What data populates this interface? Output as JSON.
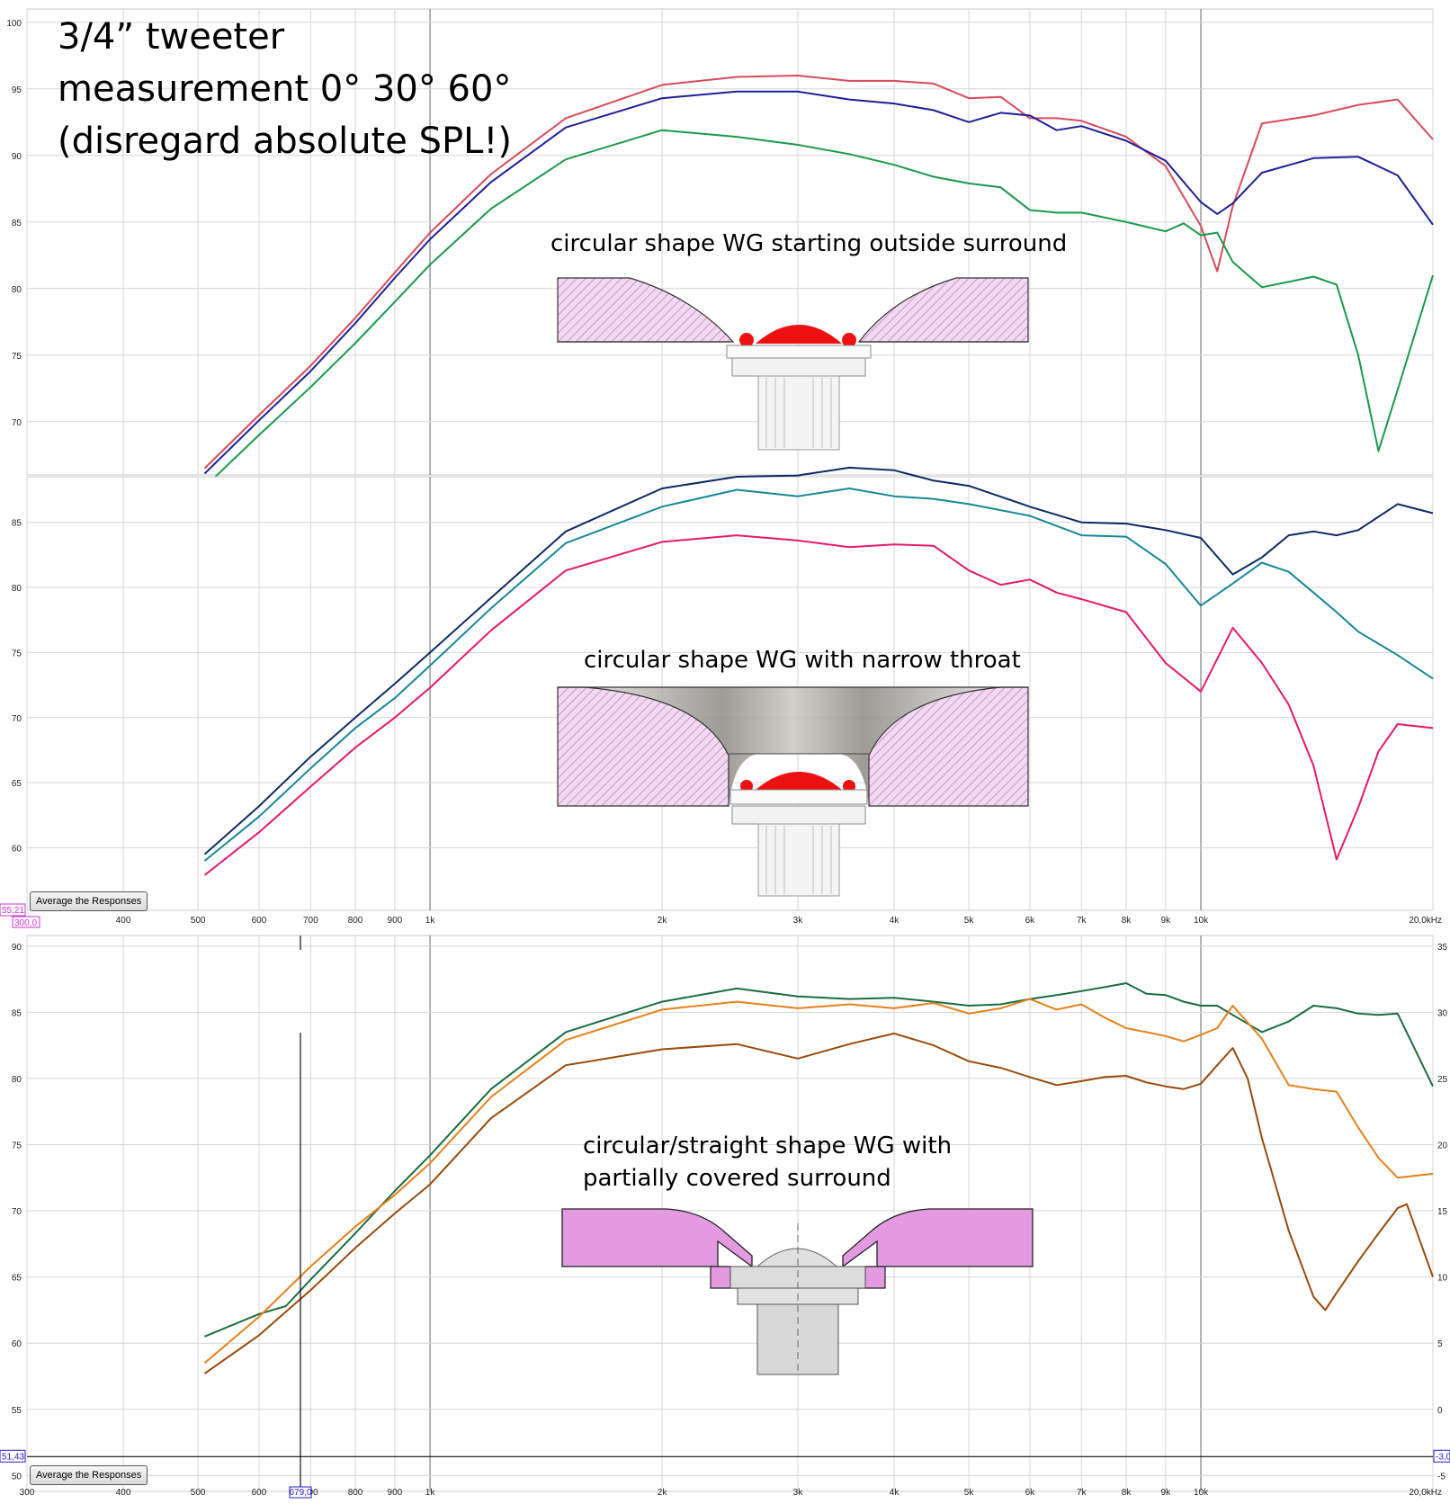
{
  "title_lines": [
    "3/4” tweeter",
    "measurement 0° 30° 60°",
    "(disregard absolute SPL!)"
  ],
  "captions": {
    "panel1": [
      "circular shape WG starting outside surround"
    ],
    "panel2": [
      "circular shape WG with narrow throat"
    ],
    "panel3": [
      "circular/straight shape WG with",
      "partially covered surround"
    ]
  },
  "buttons": {
    "average": "Average the Responses"
  },
  "readouts": {
    "panel2_left_value": "55,21",
    "panel2_left_freq": "300,0",
    "panel3_left_value": "51,43",
    "panel3_right_value": "-3,0",
    "panel3_cursor_freq": "679,0"
  },
  "freq_axis": {
    "ticks": [
      300,
      400,
      500,
      600,
      700,
      800,
      900,
      1000,
      2000,
      3000,
      4000,
      5000,
      6000,
      7000,
      8000,
      9000,
      10000,
      20000
    ],
    "tick_labels": [
      "300",
      "400",
      "500",
      "600",
      "700",
      "800",
      "900",
      "1k",
      "2k",
      "3k",
      "4k",
      "5k",
      "6k",
      "7k",
      "8k",
      "9k",
      "10k",
      "20,0kHz"
    ],
    "xlim": [
      300,
      20000
    ],
    "scale": "log"
  },
  "colors": {
    "p1_0deg": "#d94a5a",
    "p1_30deg": "#1f1f9a",
    "p1_60deg": "#1a9a4a",
    "p2_0deg": "#0e2a66",
    "p2_30deg": "#17889a",
    "p2_60deg": "#e8186b",
    "p3_0deg": "#1a6e40",
    "p3_30deg": "#e8801a",
    "p3_60deg": "#9a4a0a",
    "wg_hatch": "#c58fc5",
    "wg_fill_solid": "#e39ae0",
    "dome": "#ee1111"
  },
  "chart_data": [
    {
      "type": "line",
      "panel": "top",
      "ylim": [
        66,
        101
      ],
      "y_ticks": [
        70,
        75,
        80,
        85,
        90,
        95,
        100
      ],
      "grid": true,
      "series": [
        {
          "x": [
            510,
            600,
            700,
            800,
            900,
            1000,
            1200,
            1500,
            2000,
            2500,
            3000,
            3500,
            4000,
            4500,
            5000,
            5500,
            6000,
            6500,
            7000,
            8000,
            9000,
            10000,
            10500,
            11000,
            12000,
            14000,
            16000,
            18000,
            20000
          ],
          "values": [
            66.5,
            70.5,
            74.2,
            77.8,
            81.2,
            84.2,
            88.6,
            92.8,
            95.3,
            95.9,
            96.0,
            95.6,
            95.6,
            95.4,
            94.3,
            94.4,
            92.8,
            92.8,
            92.6,
            91.4,
            89.2,
            84.7,
            81.3,
            86.2,
            92.4,
            93.0,
            93.8,
            94.2,
            91.2
          ]
        },
        {
          "x": [
            510,
            600,
            700,
            800,
            900,
            1000,
            1200,
            1500,
            2000,
            2500,
            3000,
            3500,
            4000,
            4500,
            5000,
            5500,
            6000,
            6500,
            7000,
            8000,
            9000,
            10000,
            10500,
            11000,
            12000,
            14000,
            16000,
            18000,
            20000
          ],
          "values": [
            66.1,
            70.1,
            73.8,
            77.4,
            80.8,
            83.7,
            88.0,
            92.1,
            94.3,
            94.8,
            94.8,
            94.2,
            93.9,
            93.4,
            92.5,
            93.2,
            93.0,
            91.9,
            92.2,
            91.1,
            89.6,
            86.5,
            85.6,
            86.4,
            88.7,
            89.8,
            89.9,
            88.5,
            84.8
          ]
        },
        {
          "x": [
            510,
            600,
            700,
            800,
            900,
            1000,
            1200,
            1500,
            2000,
            2500,
            3000,
            3500,
            4000,
            4500,
            5000,
            5500,
            6000,
            6500,
            7000,
            8000,
            9000,
            9500,
            10000,
            10500,
            11000,
            12000,
            13000,
            14000,
            15000,
            16000,
            17000,
            18000,
            20000
          ],
          "values": [
            65.1,
            69.0,
            72.6,
            75.9,
            79.0,
            81.8,
            86.0,
            89.7,
            91.9,
            91.4,
            90.8,
            90.1,
            89.3,
            88.4,
            87.9,
            87.6,
            85.9,
            85.7,
            85.7,
            85.0,
            84.3,
            84.9,
            84.0,
            84.2,
            82.0,
            80.1,
            80.5,
            80.9,
            80.3,
            75.0,
            67.8,
            72.4,
            81.0
          ]
        }
      ]
    },
    {
      "type": "line",
      "panel": "middle",
      "ylim": [
        55.2,
        88.5
      ],
      "y_ticks": [
        60,
        65,
        70,
        75,
        80,
        85
      ],
      "grid": true,
      "series": [
        {
          "x": [
            510,
            600,
            700,
            800,
            900,
            1000,
            1200,
            1500,
            2000,
            2500,
            3000,
            3500,
            4000,
            4500,
            5000,
            6000,
            7000,
            8000,
            9000,
            10000,
            11000,
            12000,
            13000,
            14000,
            15000,
            16000,
            18000,
            20000
          ],
          "values": [
            59.5,
            63.2,
            67.0,
            70.0,
            72.6,
            75.0,
            79.2,
            84.3,
            87.6,
            88.5,
            88.6,
            89.2,
            89.0,
            88.2,
            87.8,
            86.2,
            85.0,
            84.9,
            84.4,
            83.8,
            81.0,
            82.3,
            84.0,
            84.3,
            84.0,
            84.4,
            86.4,
            85.7
          ]
        },
        {
          "x": [
            510,
            600,
            700,
            800,
            900,
            1000,
            1200,
            1500,
            2000,
            2500,
            3000,
            3500,
            4000,
            4500,
            5000,
            6000,
            7000,
            8000,
            9000,
            10000,
            11000,
            12000,
            13000,
            14000,
            15000,
            16000,
            18000,
            20000
          ],
          "values": [
            59.0,
            62.4,
            66.1,
            69.2,
            71.5,
            74.0,
            78.4,
            83.4,
            86.2,
            87.5,
            87.0,
            87.6,
            87.0,
            86.8,
            86.4,
            85.5,
            84.0,
            83.9,
            81.8,
            78.6,
            80.3,
            81.9,
            81.2,
            79.6,
            78.1,
            76.6,
            74.8,
            73.0
          ]
        },
        {
          "x": [
            510,
            600,
            700,
            800,
            900,
            1000,
            1200,
            1500,
            2000,
            2500,
            3000,
            3500,
            4000,
            4500,
            5000,
            5500,
            6000,
            6500,
            7000,
            8000,
            9000,
            10000,
            11000,
            12000,
            13000,
            14000,
            15000,
            16000,
            17000,
            18000,
            20000
          ],
          "values": [
            57.9,
            61.2,
            64.7,
            67.7,
            70.0,
            72.3,
            76.7,
            81.3,
            83.5,
            84.0,
            83.6,
            83.1,
            83.3,
            83.2,
            81.3,
            80.2,
            80.6,
            79.6,
            79.1,
            78.1,
            74.2,
            72.0,
            76.9,
            74.2,
            71.0,
            66.3,
            59.1,
            63.1,
            67.4,
            69.5,
            69.2
          ]
        }
      ]
    },
    {
      "type": "line",
      "panel": "bottom",
      "ylim": [
        48.8,
        90.8
      ],
      "y_ticks": [
        50,
        55,
        60,
        65,
        70,
        75,
        80,
        85,
        90
      ],
      "y2_ticks": [
        -5,
        0,
        5,
        10,
        15,
        20,
        25,
        30,
        35
      ],
      "grid": true,
      "series": [
        {
          "x": [
            510,
            600,
            650,
            700,
            800,
            900,
            1000,
            1200,
            1500,
            2000,
            2500,
            3000,
            3500,
            4000,
            4500,
            5000,
            5500,
            6000,
            6500,
            7000,
            7500,
            8000,
            8500,
            9000,
            9500,
            10000,
            10500,
            11000,
            12000,
            13000,
            14000,
            15000,
            16000,
            17000,
            18000,
            20000
          ],
          "values": [
            60.5,
            62.2,
            62.8,
            64.8,
            68.3,
            71.5,
            74.2,
            79.2,
            83.5,
            85.8,
            86.8,
            86.2,
            86.0,
            86.1,
            85.8,
            85.5,
            85.6,
            86.0,
            86.3,
            86.6,
            86.9,
            87.2,
            86.4,
            86.3,
            85.8,
            85.5,
            85.5,
            84.8,
            83.5,
            84.3,
            85.5,
            85.3,
            84.9,
            84.8,
            84.9,
            79.4
          ]
        },
        {
          "x": [
            510,
            600,
            700,
            800,
            900,
            1000,
            1200,
            1500,
            2000,
            2500,
            3000,
            3500,
            4000,
            4500,
            5000,
            5500,
            6000,
            6500,
            7000,
            7500,
            8000,
            8500,
            9000,
            9500,
            10000,
            10500,
            11000,
            12000,
            13000,
            14000,
            15000,
            16000,
            17000,
            18000,
            20000
          ],
          "values": [
            58.5,
            62.0,
            65.8,
            68.8,
            71.2,
            73.6,
            78.6,
            82.9,
            85.2,
            85.8,
            85.3,
            85.6,
            85.3,
            85.7,
            84.9,
            85.3,
            86.0,
            85.2,
            85.6,
            84.6,
            83.8,
            83.5,
            83.2,
            82.8,
            83.3,
            83.8,
            85.5,
            83.0,
            79.5,
            79.2,
            79.0,
            76.3,
            74.0,
            72.5,
            72.8
          ]
        },
        {
          "x": [
            510,
            600,
            700,
            800,
            900,
            1000,
            1200,
            1500,
            2000,
            2500,
            3000,
            3500,
            4000,
            4500,
            5000,
            5500,
            6000,
            6500,
            7000,
            7500,
            8000,
            8500,
            9000,
            9500,
            10000,
            10500,
            11000,
            11500,
            12000,
            13000,
            14000,
            14500,
            15000,
            16000,
            17000,
            18000,
            18500,
            20000
          ],
          "values": [
            57.7,
            60.6,
            64.0,
            67.2,
            69.8,
            72.0,
            77.0,
            81.0,
            82.2,
            82.6,
            81.5,
            82.6,
            83.4,
            82.5,
            81.3,
            80.8,
            80.1,
            79.5,
            79.8,
            80.1,
            80.2,
            79.7,
            79.4,
            79.2,
            79.6,
            81.0,
            82.3,
            80.0,
            75.5,
            68.5,
            63.5,
            62.5,
            63.8,
            66.2,
            68.3,
            70.2,
            70.5,
            65.0
          ]
        }
      ]
    }
  ]
}
